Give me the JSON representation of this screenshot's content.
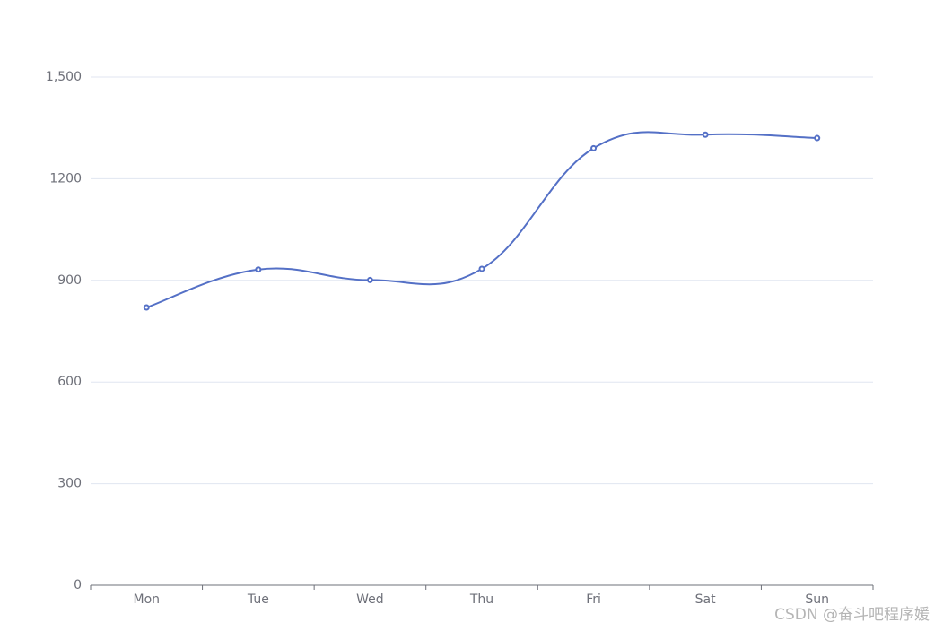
{
  "chart_data": {
    "type": "line",
    "categories": [
      "Mon",
      "Tue",
      "Wed",
      "Thu",
      "Fri",
      "Sat",
      "Sun"
    ],
    "series": [
      {
        "color": "#5470c6",
        "values": [
          820,
          932,
          901,
          934,
          1290,
          1330,
          1320
        ]
      }
    ],
    "ylim": [
      0,
      1500
    ],
    "yticks": [
      0,
      300,
      600,
      900,
      1200,
      {
        "value": 1500,
        "label": "1,500"
      }
    ],
    "grid": true,
    "smooth": true
  },
  "watermark": "CSDN @奋斗吧程序媛"
}
